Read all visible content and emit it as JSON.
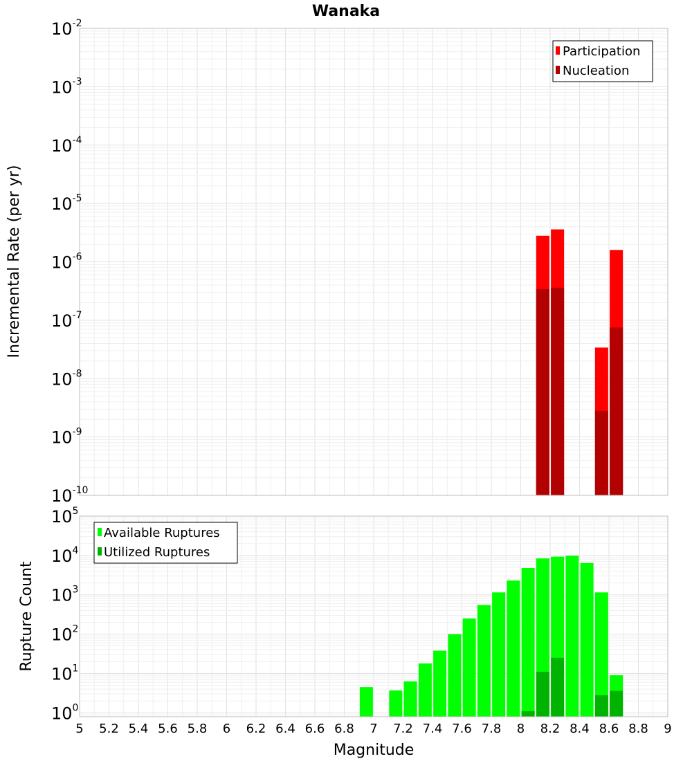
{
  "title": "Wanaka",
  "colors": {
    "participation": "#ff0000",
    "nucleation": "#b30000",
    "available": "#00ff00",
    "utilized": "#00b300"
  },
  "chart_data": [
    {
      "type": "bar",
      "log_y": true,
      "title": "Wanaka",
      "xlabel": "",
      "ylabel": "Incremental Rate (per yr)",
      "xlim": [
        5,
        9
      ],
      "ylim_exp": [
        -10,
        -2
      ],
      "y_tick_labels": [
        {
          "base": "10",
          "exp": "-10"
        },
        {
          "base": "10",
          "exp": "-9"
        },
        {
          "base": "10",
          "exp": "-8"
        },
        {
          "base": "10",
          "exp": "-7"
        },
        {
          "base": "10",
          "exp": "-6"
        },
        {
          "base": "10",
          "exp": "-5"
        },
        {
          "base": "10",
          "exp": "-4"
        },
        {
          "base": "10",
          "exp": "-3"
        },
        {
          "base": "10",
          "exp": "-2"
        }
      ],
      "legend": {
        "position": "top-right",
        "entries": [
          "Participation",
          "Nucleation"
        ]
      },
      "grid": true,
      "series": [
        {
          "name": "Participation",
          "x": [
            8.15,
            8.25,
            8.55,
            8.65
          ],
          "values": [
            2.8e-06,
            3.6e-06,
            3.4e-08,
            1.6e-06
          ]
        },
        {
          "name": "Nucleation",
          "x": [
            8.15,
            8.25,
            8.55,
            8.65
          ],
          "values": [
            3.4e-07,
            3.6e-07,
            2.8e-09,
            7.5e-08
          ]
        }
      ]
    },
    {
      "type": "bar",
      "log_y": true,
      "title": "",
      "xlabel": "Magnitude",
      "ylabel": "Rupture Count",
      "xlim": [
        5,
        9
      ],
      "ylim_exp": [
        -0.1,
        5
      ],
      "x_tick_labels": [
        "5",
        "5.2",
        "5.4",
        "5.6",
        "5.8",
        "6",
        "6.2",
        "6.4",
        "6.6",
        "6.8",
        "7",
        "7.2",
        "7.4",
        "7.6",
        "7.8",
        "8",
        "8.2",
        "8.4",
        "8.6",
        "8.8",
        "9"
      ],
      "y_tick_labels": [
        {
          "base": "10",
          "exp": "0"
        },
        {
          "base": "10",
          "exp": "1"
        },
        {
          "base": "10",
          "exp": "2"
        },
        {
          "base": "10",
          "exp": "3"
        },
        {
          "base": "10",
          "exp": "4"
        },
        {
          "base": "10",
          "exp": "5"
        }
      ],
      "legend": {
        "position": "top-left",
        "entries": [
          "Available Ruptures",
          "Utilized Ruptures"
        ]
      },
      "grid": true,
      "series": [
        {
          "name": "Available Ruptures",
          "x": [
            6.95,
            7.15,
            7.25,
            7.35,
            7.45,
            7.55,
            7.65,
            7.75,
            7.85,
            7.95,
            8.05,
            8.15,
            8.25,
            8.35,
            8.45,
            8.55,
            8.65
          ],
          "values": [
            4.5,
            3.7,
            6.3,
            18,
            38,
            100,
            250,
            550,
            1150,
            2300,
            4800,
            8400,
            9300,
            9800,
            6400,
            1150,
            9
          ]
        },
        {
          "name": "Utilized Ruptures",
          "x": [
            8.05,
            8.15,
            8.25,
            8.55,
            8.65
          ],
          "values": [
            1.1,
            11,
            25,
            2.8,
            3.6
          ]
        }
      ]
    }
  ]
}
